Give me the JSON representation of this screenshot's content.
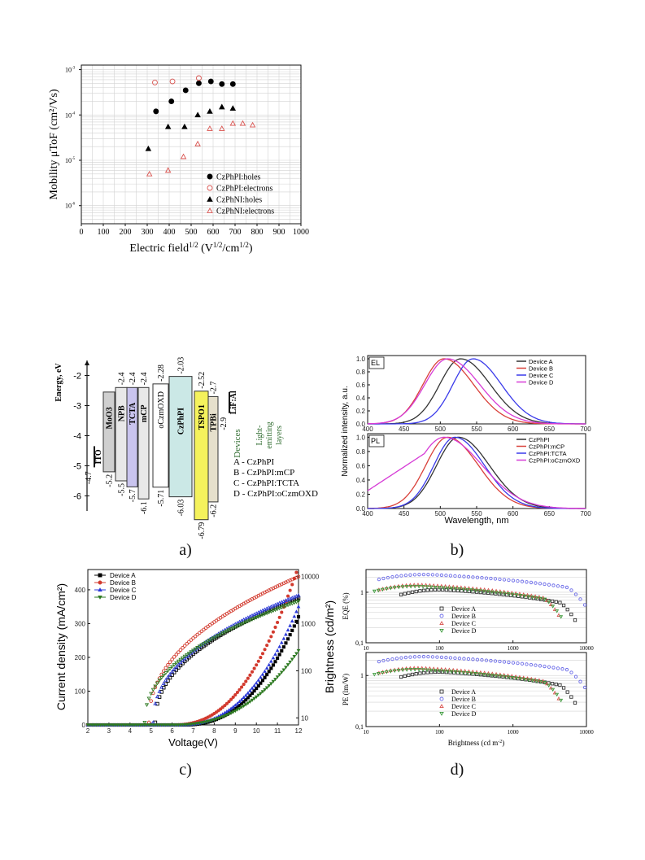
{
  "panel_labels": [
    "a)",
    "b)",
    "c)",
    "d)"
  ],
  "chart_data": [
    {
      "type": "scatter",
      "id": "mobility",
      "xlabel": "Electric field",
      "xlabel_sup1": "1/2",
      "xlabel_unit_open": "(V",
      "xlabel_sup2": "1/2",
      "xlabel_unit_mid": "/cm",
      "xlabel_sup3": "1/2",
      "xlabel_unit_close": ")",
      "ylabel": "Mobility μToF (cm²/Vs)",
      "xlim": [
        0,
        1000
      ],
      "ylim_log10": [
        -6.4,
        -2.9
      ],
      "x_ticks": [
        "0",
        "100",
        "200",
        "300",
        "400",
        "500",
        "600",
        "700",
        "800",
        "900",
        "1000"
      ],
      "y_ticks": [
        {
          "exp": -3,
          "label": "10"
        },
        {
          "exp": -4,
          "label": "10"
        },
        {
          "exp": -5,
          "label": "10"
        },
        {
          "exp": -6,
          "label": "10"
        }
      ],
      "y_tick_exps": [
        "-3",
        "-4",
        "-5",
        "-6"
      ],
      "series": [
        {
          "name": "CzPhPI:holes",
          "marker": "filled-circle",
          "color": "#000000",
          "x": [
            340,
            410,
            475,
            535,
            590,
            640,
            690
          ],
          "y": [
            0.00012,
            0.0002,
            0.00035,
            0.0005,
            0.00055,
            0.00048,
            0.00048
          ]
        },
        {
          "name": "CzPhPI:electrons",
          "marker": "open-circle",
          "color": "#d9534f",
          "x": [
            335,
            415,
            535
          ],
          "y": [
            0.00052,
            0.00055,
            0.00065
          ]
        },
        {
          "name": "CzPhNI:holes",
          "marker": "filled-triangle",
          "color": "#000000",
          "x": [
            305,
            395,
            470,
            530,
            585,
            640,
            690
          ],
          "y": [
            1.8e-05,
            5.5e-05,
            5.5e-05,
            0.0001,
            0.00012,
            0.00015,
            0.00014
          ]
        },
        {
          "name": "CzPhNI:electrons",
          "marker": "open-triangle",
          "color": "#d9534f",
          "x": [
            310,
            395,
            465,
            530,
            585,
            640,
            690,
            735,
            780
          ],
          "y": [
            5e-06,
            6e-06,
            1.2e-05,
            2.3e-05,
            5e-05,
            5e-05,
            6.5e-05,
            6.5e-05,
            6e-05
          ]
        }
      ]
    },
    {
      "type": "diagram",
      "id": "energy-levels",
      "ylabel": "Energy, eV",
      "y_ticks": [
        "-2",
        "-3",
        "-4",
        "-5",
        "-6"
      ],
      "ylim": [
        -6.5,
        -1.5
      ],
      "layers": [
        {
          "name": "ITO",
          "top": -4.7,
          "bottom": -4.7,
          "fill": "#ffffff",
          "top_label": "-4.7",
          "bottom_label": ""
        },
        {
          "name": "MoO3",
          "top": -2.55,
          "bottom": -5.2,
          "fill": "#cfcfcf",
          "top_label": "",
          "bottom_label": "-5.2"
        },
        {
          "name": "NPB",
          "top": -2.4,
          "bottom": -5.5,
          "fill": "#e8e8e8",
          "top_label": "-2.4",
          "bottom_label": "-5.5"
        },
        {
          "name": "TCTA",
          "top": -2.4,
          "bottom": -5.7,
          "fill": "#c9c4ee",
          "top_label": "-2.4",
          "bottom_label": "-5.7"
        },
        {
          "name": "mCP",
          "top": -2.4,
          "bottom": -6.1,
          "fill": "#e8e8e8",
          "top_label": "-2.4",
          "bottom_label": "-6.1"
        },
        {
          "name": "oCzmOXD",
          "top": -2.28,
          "bottom": -5.71,
          "fill": "#ffffff",
          "top_label": "-2.28",
          "bottom_label": "-5.71"
        },
        {
          "name": "CzPhPI",
          "top": -2.03,
          "bottom": -6.03,
          "fill": "#cbe8e6",
          "top_label": "-2.03",
          "bottom_label": "-6.03"
        },
        {
          "name": "TSPO1",
          "top": -2.52,
          "bottom": -6.79,
          "fill": "#f5f25c",
          "top_label": "-2.52",
          "bottom_label": "-6.79"
        },
        {
          "name": "TPBi",
          "top": -2.7,
          "bottom": -6.2,
          "fill": "#e6e0cc",
          "top_label": "-2.7",
          "bottom_label": "-6.2"
        },
        {
          "name": "LiF:Al",
          "top": -2.9,
          "bottom": -2.9,
          "fill": "#ffffff",
          "top_label": "-2.9",
          "bottom_label": ""
        }
      ],
      "devices_title": "Devices",
      "eml_title_1": "Light-",
      "eml_title_2": "emitting",
      "eml_title_3": "layers",
      "devices": [
        "A - CzPhPI",
        "B - CzPhPI:mCP",
        "C - CzPhPI:TCTA",
        "D - CzPhPI:oCzmOXD"
      ]
    },
    {
      "type": "line",
      "id": "spectra",
      "xlabel": "Wavelength, nm",
      "ylabel": "Normalized intensity, a.u.",
      "xlim": [
        400,
        700
      ],
      "ylim": [
        0,
        1.05
      ],
      "x_ticks": [
        "400",
        "450",
        "500",
        "550",
        "600",
        "650",
        "700"
      ],
      "y_ticks": [
        "0.0",
        "0.2",
        "0.4",
        "0.6",
        "0.8",
        "1.0"
      ],
      "panels": [
        {
          "tag": "EL",
          "series": [
            {
              "name": "Device A",
              "color": "#333333",
              "peak": 528,
              "width": 48
            },
            {
              "name": "Device B",
              "color": "#d9413a",
              "peak": 505,
              "width": 48
            },
            {
              "name": "Device C",
              "color": "#3b3bea",
              "peak": 545,
              "width": 46
            },
            {
              "name": "Device D",
              "color": "#d63cd6",
              "peak": 510,
              "width": 52
            }
          ]
        },
        {
          "tag": "PL",
          "series": [
            {
              "name": "CzPhPI",
              "color": "#333333",
              "peak": 525,
              "width": 50
            },
            {
              "name": "CzPhPI:mCP",
              "color": "#d9413a",
              "peak": 510,
              "width": 50
            },
            {
              "name": "CzPhPI:TCTA",
              "color": "#3b3bea",
              "peak": 520,
              "width": 48
            },
            {
              "name": "CzPhPI:oCzmOXD",
              "color": "#d63cd6",
              "peak": 505,
              "width": 62
            }
          ]
        }
      ]
    },
    {
      "type": "line",
      "id": "jvl",
      "xlabel": "Voltage(V)",
      "ylabel": "Current density (mA/cm²)",
      "y2label": "Brightness (cd/m²)",
      "xlim": [
        2,
        12
      ],
      "ylim": [
        0,
        460
      ],
      "y2lim_log10": [
        0.85,
        4.15
      ],
      "x_ticks": [
        "2",
        "3",
        "4",
        "5",
        "6",
        "7",
        "8",
        "9",
        "10",
        "11",
        "12"
      ],
      "y_ticks": [
        "0",
        "100",
        "200",
        "300",
        "400"
      ],
      "y2_ticks": [
        "10",
        "100",
        "1000",
        "10000"
      ],
      "series": [
        {
          "name": "Device A",
          "color": "#000000",
          "marker": "square",
          "j_onset": 6.5,
          "j_12": 320,
          "l_start": 5.2,
          "l_12": 3500
        },
        {
          "name": "Device B",
          "color": "#d23a2e",
          "marker": "circle",
          "j_onset": 6.0,
          "j_12": 470,
          "l_start": 4.9,
          "l_12": 10000
        },
        {
          "name": "Device C",
          "color": "#2b39d8",
          "marker": "triangle",
          "j_onset": 6.3,
          "j_12": 350,
          "l_start": 5.1,
          "l_12": 4000
        },
        {
          "name": "Device D",
          "color": "#2e7a22",
          "marker": "triangle-down",
          "j_onset": 6.0,
          "j_12": 220,
          "l_start": 4.7,
          "l_12": 3000
        }
      ]
    },
    {
      "type": "scatter",
      "id": "efficiency",
      "xlabel": "Brightness (cd m",
      "xlabel_sup": "-2",
      "xlabel_close": ")",
      "xlim_log10": [
        1,
        4
      ],
      "x_ticks": [
        "10",
        "100",
        "1000",
        "10000"
      ],
      "panels": [
        {
          "ylabel": "EQE (%)",
          "ylim_log10": [
            -1,
            0.45
          ],
          "y_ticks": [
            "0,1",
            "1"
          ]
        },
        {
          "ylabel": "PE (lm/W)",
          "ylim_log10": [
            -1,
            0.45
          ],
          "y_ticks": [
            "0,1",
            "1"
          ]
        }
      ],
      "series": [
        {
          "name": "Device A",
          "color": "#333333",
          "marker": "square",
          "eqe_peak": 1.2,
          "pe_peak": 1.25,
          "l_max": 7000
        },
        {
          "name": "Device B",
          "color": "#6b6be8",
          "marker": "circle",
          "eqe_peak": 2.4,
          "pe_peak": 2.5,
          "l_max": 9500
        },
        {
          "name": "Device C",
          "color": "#d9534f",
          "marker": "triangle",
          "eqe_peak": 1.5,
          "pe_peak": 1.5,
          "l_max": 4200
        },
        {
          "name": "Device D",
          "color": "#3a9a3a",
          "marker": "triangle-down",
          "eqe_peak": 1.4,
          "pe_peak": 1.4,
          "l_max": 4500
        }
      ]
    }
  ]
}
